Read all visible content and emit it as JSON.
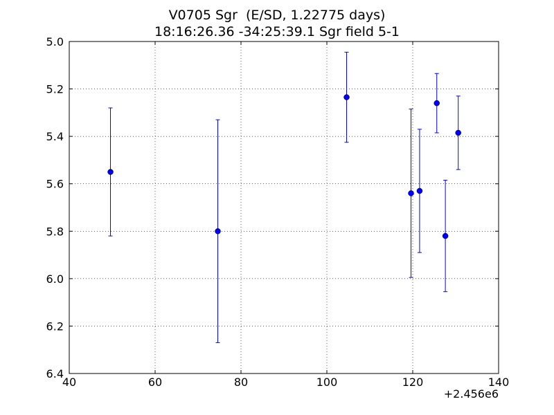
{
  "chart_data": {
    "type": "scatter",
    "title": "V0705 Sgr  (E/SD, 1.22775 days)",
    "subtitle": "18:16:26.36 -34:25:39.1 Sgr field 5-1",
    "xlabel": "",
    "ylabel": "",
    "x_offset_label": "+2.456e6",
    "xlim": [
      40,
      140
    ],
    "ylim": [
      5.0,
      6.4
    ],
    "y_inverted": true,
    "grid": true,
    "x_ticks": [
      "40",
      "60",
      "80",
      "100",
      "120",
      "140"
    ],
    "y_ticks": [
      "5.0",
      "5.2",
      "5.4",
      "5.6",
      "5.8",
      "6.0",
      "6.2",
      "6.4"
    ],
    "marker_color": "#0000ff",
    "points": [
      {
        "x": 49.6,
        "y": 5.55,
        "err": 0.27
      },
      {
        "x": 74.6,
        "y": 5.8,
        "err": 0.47
      },
      {
        "x": 104.6,
        "y": 5.235,
        "err": 0.19
      },
      {
        "x": 119.6,
        "y": 5.64,
        "err": 0.355
      },
      {
        "x": 121.6,
        "y": 5.63,
        "err": 0.26
      },
      {
        "x": 125.6,
        "y": 5.26,
        "err": 0.125
      },
      {
        "x": 127.6,
        "y": 5.82,
        "err": 0.235
      },
      {
        "x": 130.6,
        "y": 5.385,
        "err": 0.155
      }
    ]
  }
}
